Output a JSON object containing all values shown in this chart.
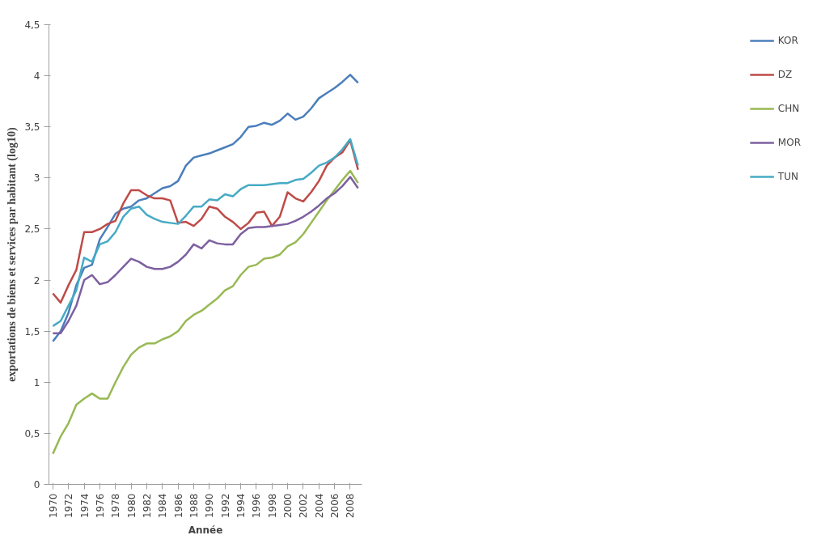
{
  "chart_data": {
    "type": "line",
    "xlabel": "Année",
    "ylabel": "exportations de biens et services par habitant (log10)",
    "categories": [
      "1970",
      null,
      "1972",
      null,
      "1974",
      null,
      "1976",
      null,
      "1978",
      null,
      "1980",
      null,
      "1982",
      null,
      "1984",
      null,
      "1986",
      null,
      "1988",
      null,
      "1990",
      null,
      "1992",
      null,
      "1994",
      null,
      "1996",
      null,
      "1998",
      null,
      "2000",
      null,
      "2002",
      null,
      "2004",
      null,
      "2006",
      null,
      "2008",
      null
    ],
    "ylim": [
      0,
      4.5
    ],
    "yticks": [
      0,
      {
        "value": 0.5,
        "label": "0,5"
      },
      1,
      {
        "value": 1.5,
        "label": "1,5"
      },
      2,
      {
        "value": 2.5,
        "label": "2,5"
      },
      3,
      {
        "value": 3.5,
        "label": "3,5"
      },
      4,
      {
        "value": 4.5,
        "label": "4,5"
      }
    ],
    "grid": false,
    "legend": "right",
    "marker": "none",
    "line_style": "solid",
    "series": [
      {
        "name": "KOR",
        "color": "#4a7ebb",
        "values": [
          1.4,
          1.5,
          1.68,
          1.95,
          2.12,
          2.15,
          2.4,
          2.52,
          2.65,
          2.7,
          2.72,
          2.78,
          2.8,
          2.85,
          2.9,
          2.92,
          2.97,
          3.12,
          3.2,
          3.22,
          3.24,
          3.27,
          3.3,
          3.33,
          3.4,
          3.5,
          3.51,
          3.54,
          3.52,
          3.56,
          3.63,
          3.57,
          3.6,
          3.68,
          3.78,
          3.83,
          3.88,
          3.94,
          4.01,
          3.93
        ]
      },
      {
        "name": "DZ",
        "color": "#be4b48",
        "values": [
          1.87,
          1.78,
          1.95,
          2.1,
          2.47,
          2.47,
          2.5,
          2.55,
          2.58,
          2.75,
          2.88,
          2.88,
          2.83,
          2.8,
          2.8,
          2.78,
          2.56,
          2.57,
          2.53,
          2.6,
          2.72,
          2.7,
          2.62,
          2.57,
          2.5,
          2.56,
          2.66,
          2.67,
          2.53,
          2.62,
          2.86,
          2.8,
          2.77,
          2.86,
          2.97,
          3.12,
          3.2,
          3.25,
          3.37,
          3.08
        ]
      },
      {
        "name": "CHN",
        "color": "#98b954",
        "values": [
          0.3,
          0.47,
          0.6,
          0.78,
          0.84,
          0.89,
          0.84,
          0.84,
          1.0,
          1.15,
          1.27,
          1.34,
          1.38,
          1.38,
          1.42,
          1.45,
          1.5,
          1.6,
          1.66,
          1.7,
          1.76,
          1.82,
          1.9,
          1.94,
          2.05,
          2.13,
          2.15,
          2.21,
          2.22,
          2.25,
          2.33,
          2.37,
          2.45,
          2.56,
          2.67,
          2.78,
          2.88,
          2.98,
          3.07,
          2.95
        ]
      },
      {
        "name": "MOR",
        "color": "#7d60a0",
        "values": [
          1.48,
          1.48,
          1.6,
          1.75,
          2.0,
          2.05,
          1.96,
          1.98,
          2.05,
          2.13,
          2.21,
          2.18,
          2.13,
          2.11,
          2.11,
          2.13,
          2.18,
          2.25,
          2.35,
          2.31,
          2.39,
          2.36,
          2.35,
          2.35,
          2.45,
          2.51,
          2.52,
          2.52,
          2.53,
          2.54,
          2.55,
          2.58,
          2.62,
          2.67,
          2.73,
          2.8,
          2.85,
          2.92,
          3.01,
          2.9
        ]
      },
      {
        "name": "TUN",
        "color": "#46aac5",
        "values": [
          1.55,
          1.6,
          1.75,
          1.9,
          2.22,
          2.18,
          2.35,
          2.38,
          2.47,
          2.62,
          2.7,
          2.72,
          2.64,
          2.6,
          2.57,
          2.56,
          2.55,
          2.63,
          2.72,
          2.72,
          2.79,
          2.78,
          2.84,
          2.82,
          2.89,
          2.93,
          2.93,
          2.93,
          2.94,
          2.95,
          2.95,
          2.98,
          2.99,
          3.05,
          3.12,
          3.15,
          3.2,
          3.28,
          3.38,
          3.12
        ]
      }
    ]
  }
}
